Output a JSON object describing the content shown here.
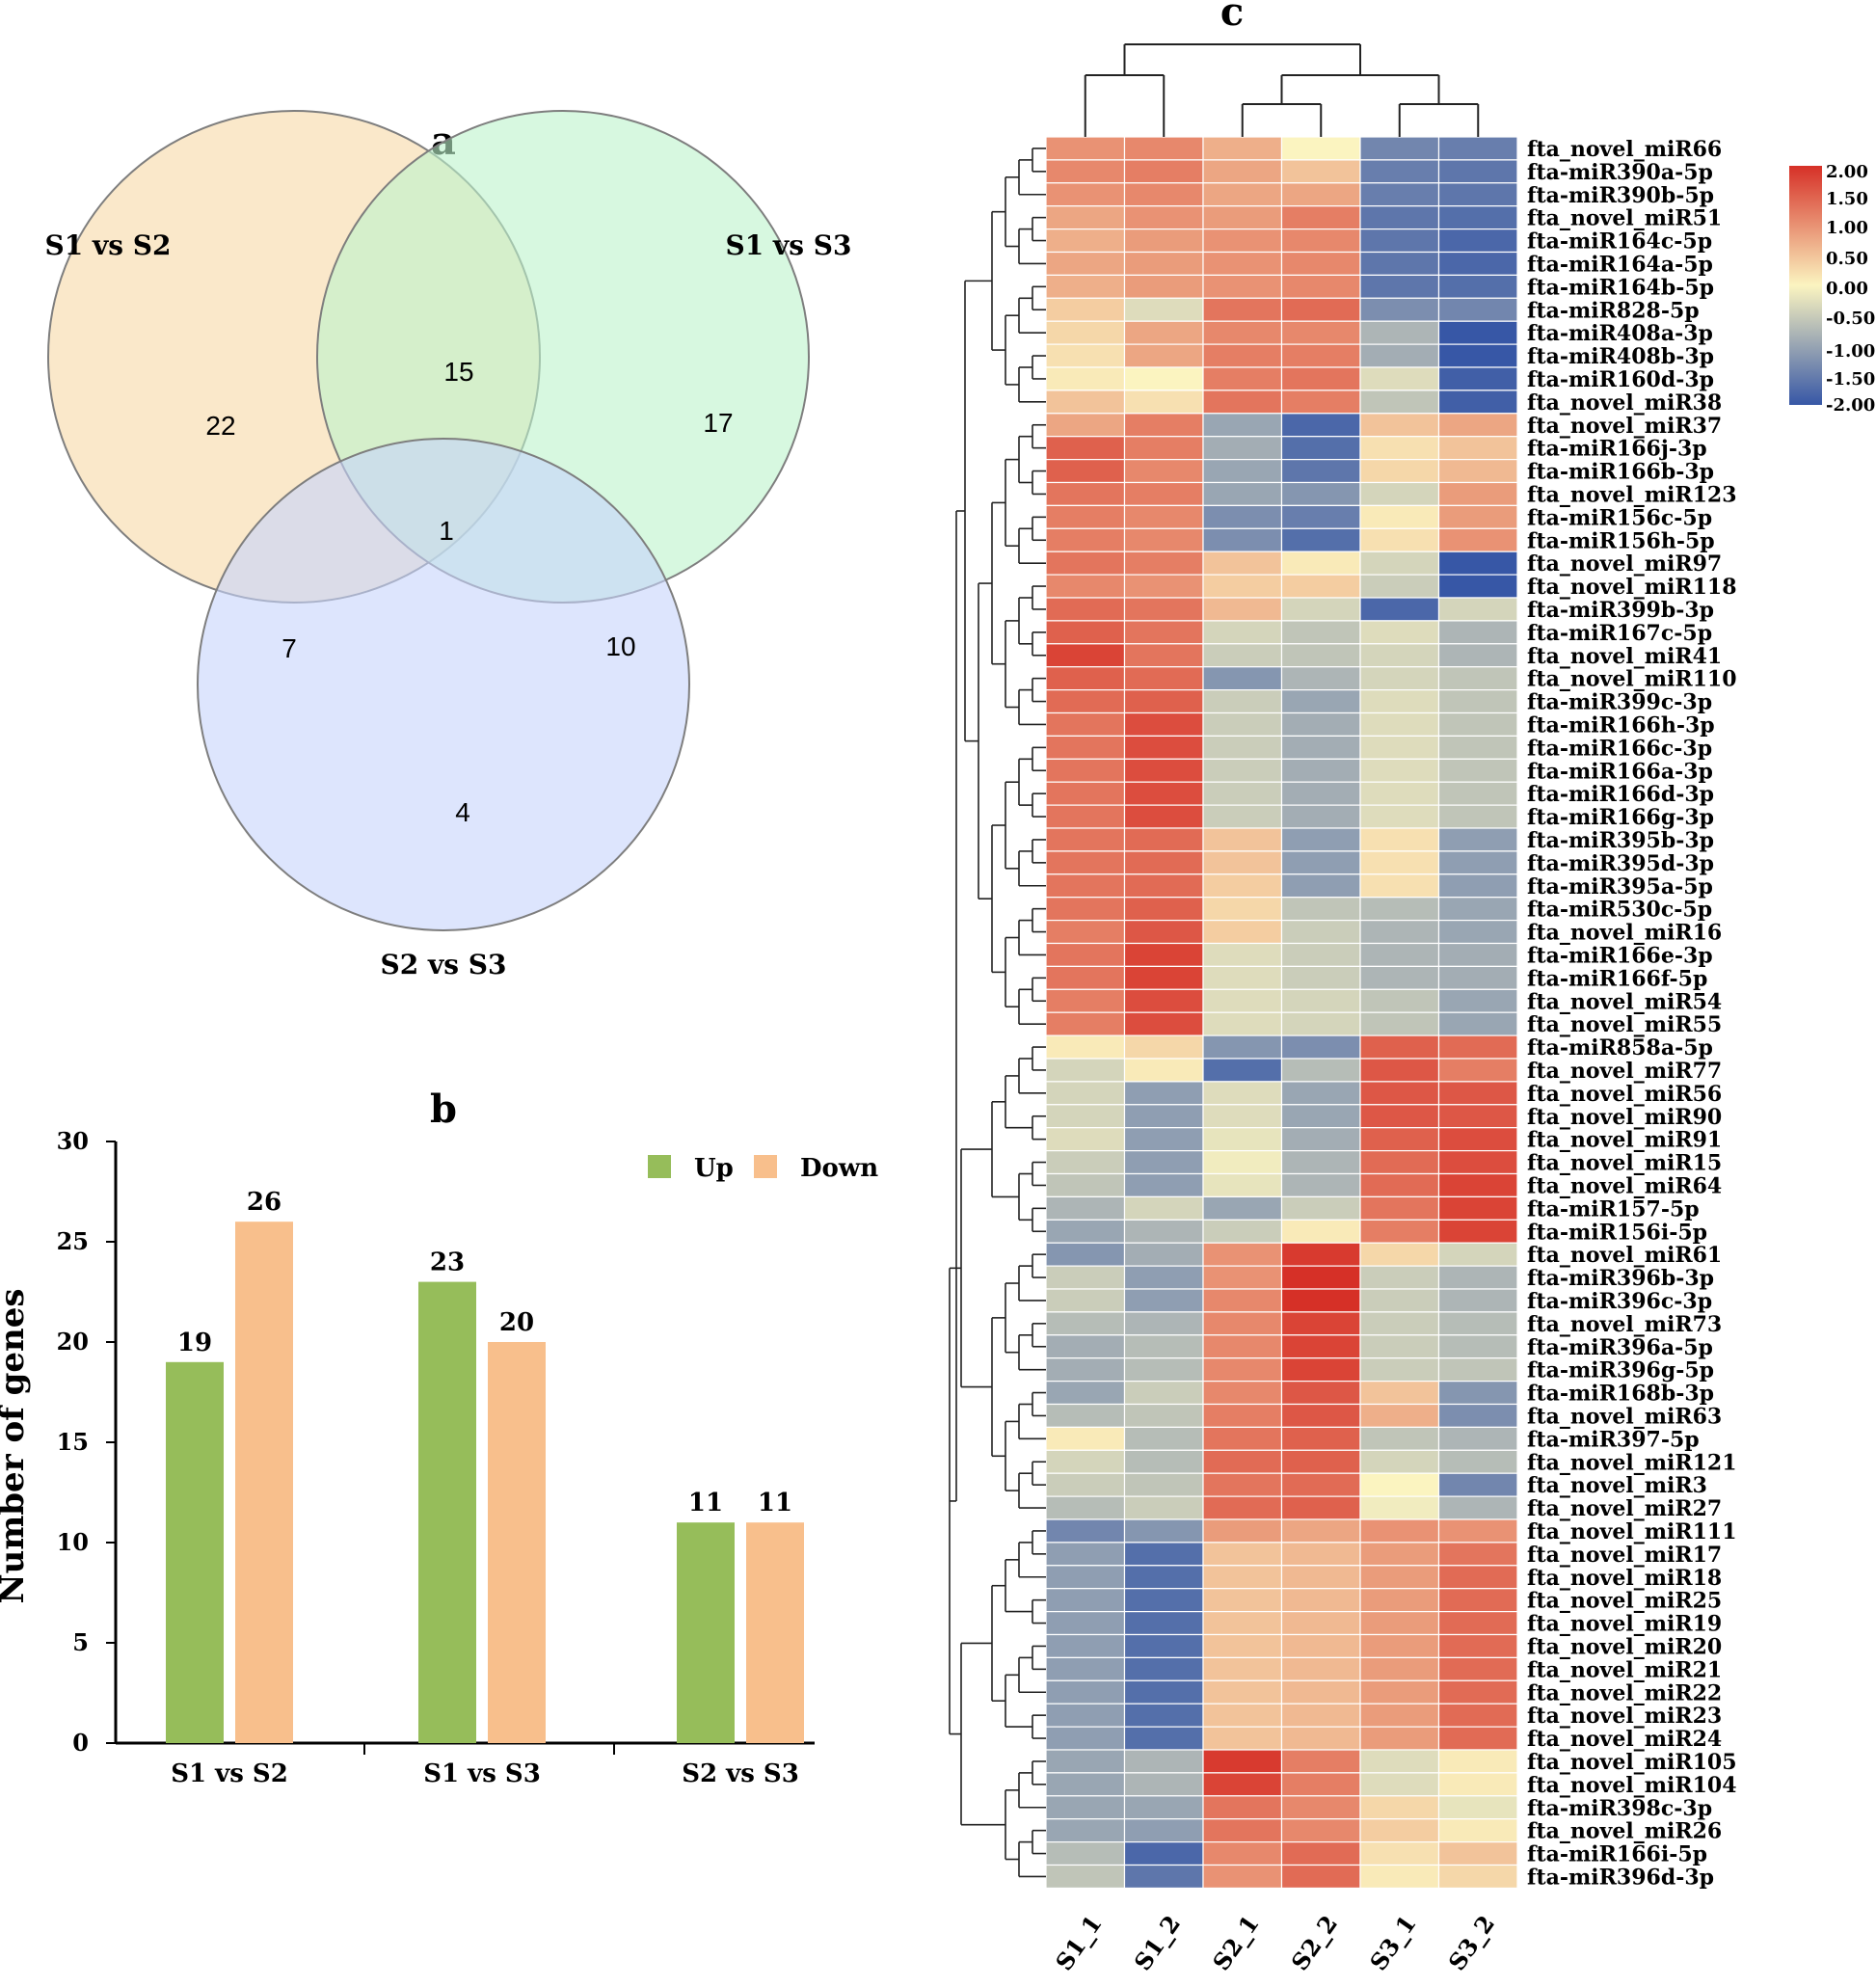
{
  "chart_data": [
    {
      "panel": "a",
      "type": "venn",
      "title": "a",
      "sets": [
        {
          "name": "S1 vs S2",
          "color": "#f6d9a6"
        },
        {
          "name": "S1 vs S3",
          "color": "#bdf3cb"
        },
        {
          "name": "S2 vs S3",
          "color": "#c6d3fb"
        }
      ],
      "regions": [
        {
          "sets": [
            "S1 vs S2"
          ],
          "count": "22"
        },
        {
          "sets": [
            "S1 vs S3"
          ],
          "count": "17"
        },
        {
          "sets": [
            "S2 vs S3"
          ],
          "count": "4"
        },
        {
          "sets": [
            "S1 vs S2",
            "S1 vs S3"
          ],
          "count": "15"
        },
        {
          "sets": [
            "S1 vs S2",
            "S2 vs S3"
          ],
          "count": "7"
        },
        {
          "sets": [
            "S1 vs S3",
            "S2 vs S3"
          ],
          "count": "10"
        },
        {
          "sets": [
            "S1 vs S2",
            "S1 vs S3",
            "S2 vs S3"
          ],
          "count": "1"
        }
      ]
    },
    {
      "panel": "b",
      "type": "bar",
      "title": "b",
      "categories": [
        "S1 vs S2",
        "S1 vs S3",
        "S2 vs S3"
      ],
      "series": [
        {
          "name": "Up",
          "color": "#96bd5a",
          "values": [
            19,
            23,
            11
          ]
        },
        {
          "name": "Down",
          "color": "#f8bf8c",
          "values": [
            26,
            20,
            11
          ]
        }
      ],
      "ylabel": "Number of genes",
      "xlabel": "",
      "ylim": [
        0,
        30
      ],
      "yticks": [
        0,
        5,
        10,
        15,
        20,
        25,
        30
      ],
      "legend_position": "top-right"
    },
    {
      "panel": "c",
      "type": "heatmap",
      "title": "c",
      "columns": [
        "S1_1",
        "S1_2",
        "S2_1",
        "S2_2",
        "S3_1",
        "S3_2"
      ],
      "color_scale": {
        "min": -2,
        "max": 2,
        "ticks": [
          "2.00",
          "1.50",
          "1.00",
          "0.50",
          "0.00",
          "-0.50",
          "-1.00",
          "-1.50",
          "-2.00"
        ],
        "colors": [
          "#3757a6",
          "#fbf4c0",
          "#d63027"
        ]
      },
      "rows": [
        {
          "name": "fta_novel_miR66",
          "values": [
            1.0,
            1.1,
            0.7,
            0.0,
            -1.4,
            -1.5
          ]
        },
        {
          "name": "fta-miR390a-5p",
          "values": [
            1.1,
            1.2,
            0.8,
            0.5,
            -1.5,
            -1.6
          ]
        },
        {
          "name": "fta-miR390b-5p",
          "values": [
            1.0,
            1.1,
            0.8,
            0.8,
            -1.5,
            -1.6
          ]
        },
        {
          "name": "fta_novel_miR51",
          "values": [
            0.8,
            1.0,
            0.9,
            1.2,
            -1.6,
            -1.7
          ]
        },
        {
          "name": "fta-miR164c-5p",
          "values": [
            0.7,
            0.9,
            1.0,
            1.1,
            -1.6,
            -1.8
          ]
        },
        {
          "name": "fta-miR164a-5p",
          "values": [
            0.8,
            0.9,
            1.0,
            1.1,
            -1.6,
            -1.8
          ]
        },
        {
          "name": "fta-miR164b-5p",
          "values": [
            0.7,
            0.9,
            1.0,
            1.1,
            -1.6,
            -1.7
          ]
        },
        {
          "name": "fta-miR828-5p",
          "values": [
            0.4,
            -0.3,
            1.3,
            1.4,
            -1.3,
            -1.4
          ]
        },
        {
          "name": "fta-miR408a-3p",
          "values": [
            0.3,
            0.8,
            1.1,
            1.1,
            -0.8,
            -2.0
          ]
        },
        {
          "name": "fta-miR408b-3p",
          "values": [
            0.2,
            0.8,
            1.2,
            1.2,
            -0.9,
            -2.0
          ]
        },
        {
          "name": "fta-miR160d-3p",
          "values": [
            0.1,
            0.0,
            1.2,
            1.3,
            -0.3,
            -1.9
          ]
        },
        {
          "name": "fta_novel_miR38",
          "values": [
            0.5,
            0.2,
            1.3,
            1.2,
            -0.6,
            -1.9
          ]
        },
        {
          "name": "fta_novel_miR37",
          "values": [
            0.8,
            1.2,
            -1.0,
            -1.8,
            0.5,
            0.8
          ]
        },
        {
          "name": "fta-miR166j-3p",
          "values": [
            1.5,
            1.2,
            -0.9,
            -1.7,
            0.2,
            0.5
          ]
        },
        {
          "name": "fta-miR166b-3p",
          "values": [
            1.5,
            1.1,
            -1.0,
            -1.6,
            0.3,
            0.6
          ]
        },
        {
          "name": "fta_novel_miR123",
          "values": [
            1.3,
            1.2,
            -1.0,
            -1.2,
            -0.4,
            0.9
          ]
        },
        {
          "name": "fta-miR156c-5p",
          "values": [
            1.2,
            1.1,
            -1.3,
            -1.5,
            0.1,
            0.9
          ]
        },
        {
          "name": "fta-miR156h-5p",
          "values": [
            1.2,
            1.1,
            -1.3,
            -1.7,
            0.2,
            1.0
          ]
        },
        {
          "name": "fta_novel_miR97",
          "values": [
            1.3,
            1.2,
            0.5,
            0.1,
            -0.4,
            -2.0
          ]
        },
        {
          "name": "fta_novel_miR118",
          "values": [
            1.1,
            1.0,
            0.4,
            0.4,
            -0.5,
            -2.0
          ]
        },
        {
          "name": "fta-miR399b-3p",
          "values": [
            1.4,
            1.3,
            0.6,
            -0.4,
            -1.8,
            -0.4
          ]
        },
        {
          "name": "fta-miR167c-5p",
          "values": [
            1.5,
            1.3,
            -0.4,
            -0.6,
            -0.3,
            -0.8
          ]
        },
        {
          "name": "fta_novel_miR41",
          "values": [
            1.8,
            1.3,
            -0.5,
            -0.6,
            -0.4,
            -0.8
          ]
        },
        {
          "name": "fta_novel_miR110",
          "values": [
            1.5,
            1.4,
            -1.2,
            -0.8,
            -0.4,
            -0.6
          ]
        },
        {
          "name": "fta-miR399c-3p",
          "values": [
            1.4,
            1.5,
            -0.5,
            -1.0,
            -0.3,
            -0.6
          ]
        },
        {
          "name": "fta-miR166h-3p",
          "values": [
            1.3,
            1.7,
            -0.5,
            -0.9,
            -0.3,
            -0.6
          ]
        },
        {
          "name": "fta-miR166c-3p",
          "values": [
            1.3,
            1.7,
            -0.5,
            -0.9,
            -0.3,
            -0.6
          ]
        },
        {
          "name": "fta-miR166a-3p",
          "values": [
            1.3,
            1.7,
            -0.5,
            -0.9,
            -0.3,
            -0.6
          ]
        },
        {
          "name": "fta-miR166d-3p",
          "values": [
            1.3,
            1.7,
            -0.5,
            -0.9,
            -0.3,
            -0.6
          ]
        },
        {
          "name": "fta-miR166g-3p",
          "values": [
            1.3,
            1.7,
            -0.5,
            -0.9,
            -0.3,
            -0.6
          ]
        },
        {
          "name": "fta-miR395b-3p",
          "values": [
            1.3,
            1.4,
            0.5,
            -1.1,
            0.2,
            -1.1
          ]
        },
        {
          "name": "fta-miR395d-3p",
          "values": [
            1.3,
            1.4,
            0.5,
            -1.1,
            0.2,
            -1.1
          ]
        },
        {
          "name": "fta-miR395a-5p",
          "values": [
            1.3,
            1.4,
            0.4,
            -1.1,
            0.2,
            -1.1
          ]
        },
        {
          "name": "fta-miR530c-5p",
          "values": [
            1.3,
            1.5,
            0.3,
            -0.6,
            -0.7,
            -1.0
          ]
        },
        {
          "name": "fta_novel_miR16",
          "values": [
            1.2,
            1.6,
            0.4,
            -0.5,
            -0.8,
            -1.0
          ]
        },
        {
          "name": "fta-miR166e-3p",
          "values": [
            1.3,
            1.8,
            -0.3,
            -0.5,
            -0.8,
            -0.9
          ]
        },
        {
          "name": "fta-miR166f-5p",
          "values": [
            1.3,
            1.8,
            -0.3,
            -0.5,
            -0.8,
            -0.9
          ]
        },
        {
          "name": "fta_novel_miR54",
          "values": [
            1.2,
            1.7,
            -0.3,
            -0.4,
            -0.6,
            -1.0
          ]
        },
        {
          "name": "fta_novel_miR55",
          "values": [
            1.2,
            1.7,
            -0.3,
            -0.4,
            -0.6,
            -1.0
          ]
        },
        {
          "name": "fta-miR858a-5p",
          "values": [
            0.1,
            0.3,
            -1.2,
            -1.3,
            1.5,
            1.4
          ]
        },
        {
          "name": "fta_novel_miR77",
          "values": [
            -0.4,
            0.1,
            -1.7,
            -0.7,
            1.6,
            1.2
          ]
        },
        {
          "name": "fta_novel_miR56",
          "values": [
            -0.4,
            -1.1,
            -0.3,
            -1.0,
            1.6,
            1.6
          ]
        },
        {
          "name": "fta_novel_miR90",
          "values": [
            -0.4,
            -1.1,
            -0.3,
            -1.0,
            1.6,
            1.6
          ]
        },
        {
          "name": "fta_novel_miR91",
          "values": [
            -0.3,
            -1.1,
            -0.2,
            -0.9,
            1.5,
            1.7
          ]
        },
        {
          "name": "fta_novel_miR15",
          "values": [
            -0.5,
            -1.1,
            -0.1,
            -0.8,
            1.4,
            1.7
          ]
        },
        {
          "name": "fta_novel_miR64",
          "values": [
            -0.6,
            -1.1,
            -0.2,
            -0.8,
            1.4,
            1.8
          ]
        },
        {
          "name": "fta-miR157-5p",
          "values": [
            -0.8,
            -0.4,
            -1.0,
            -0.5,
            1.3,
            1.8
          ]
        },
        {
          "name": "fta-miR156i-5p",
          "values": [
            -1.0,
            -0.8,
            -0.5,
            0.1,
            1.2,
            1.8
          ]
        },
        {
          "name": "fta_novel_miR61",
          "values": [
            -1.2,
            -0.9,
            1.0,
            1.9,
            0.3,
            -0.4
          ]
        },
        {
          "name": "fta-miR396b-3p",
          "values": [
            -0.5,
            -1.1,
            1.0,
            2.0,
            -0.5,
            -0.8
          ]
        },
        {
          "name": "fta-miR396c-3p",
          "values": [
            -0.5,
            -1.1,
            1.1,
            2.0,
            -0.5,
            -0.8
          ]
        },
        {
          "name": "fta_novel_miR73",
          "values": [
            -0.7,
            -0.8,
            1.1,
            1.8,
            -0.5,
            -0.7
          ]
        },
        {
          "name": "fta-miR396a-5p",
          "values": [
            -0.9,
            -0.7,
            1.1,
            1.8,
            -0.5,
            -0.7
          ]
        },
        {
          "name": "fta-miR396g-5p",
          "values": [
            -0.9,
            -0.7,
            1.1,
            1.8,
            -0.5,
            -0.6
          ]
        },
        {
          "name": "fta-miR168b-3p",
          "values": [
            -1.0,
            -0.5,
            1.1,
            1.6,
            0.5,
            -1.2
          ]
        },
        {
          "name": "fta_novel_miR63",
          "values": [
            -0.7,
            -0.6,
            1.2,
            1.6,
            0.7,
            -1.3
          ]
        },
        {
          "name": "fta-miR397-5p",
          "values": [
            0.1,
            -0.7,
            1.3,
            1.5,
            -0.6,
            -0.8
          ]
        },
        {
          "name": "fta_novel_miR121",
          "values": [
            -0.4,
            -0.7,
            1.4,
            1.5,
            -0.4,
            -0.7
          ]
        },
        {
          "name": "fta_novel_miR3",
          "values": [
            -0.5,
            -0.6,
            1.3,
            1.4,
            0.0,
            -1.4
          ]
        },
        {
          "name": "fta_novel_miR27",
          "values": [
            -0.7,
            -0.5,
            1.4,
            1.5,
            -0.1,
            -0.8
          ]
        },
        {
          "name": "fta_novel_miR111",
          "values": [
            -1.4,
            -1.2,
            0.9,
            0.8,
            1.0,
            1.0
          ]
        },
        {
          "name": "fta_novel_miR17",
          "values": [
            -1.1,
            -1.7,
            0.5,
            0.6,
            0.9,
            1.3
          ]
        },
        {
          "name": "fta_novel_miR18",
          "values": [
            -1.1,
            -1.7,
            0.5,
            0.6,
            0.9,
            1.4
          ]
        },
        {
          "name": "fta_novel_miR25",
          "values": [
            -1.1,
            -1.7,
            0.5,
            0.6,
            0.9,
            1.4
          ]
        },
        {
          "name": "fta_novel_miR19",
          "values": [
            -1.1,
            -1.7,
            0.5,
            0.6,
            0.9,
            1.4
          ]
        },
        {
          "name": "fta_novel_miR20",
          "values": [
            -1.1,
            -1.7,
            0.5,
            0.6,
            0.9,
            1.4
          ]
        },
        {
          "name": "fta_novel_miR21",
          "values": [
            -1.1,
            -1.7,
            0.5,
            0.6,
            0.9,
            1.4
          ]
        },
        {
          "name": "fta_novel_miR22",
          "values": [
            -1.1,
            -1.7,
            0.5,
            0.6,
            0.9,
            1.4
          ]
        },
        {
          "name": "fta_novel_miR23",
          "values": [
            -1.1,
            -1.7,
            0.5,
            0.6,
            0.9,
            1.4
          ]
        },
        {
          "name": "fta_novel_miR24",
          "values": [
            -1.1,
            -1.7,
            0.5,
            0.6,
            0.9,
            1.4
          ]
        },
        {
          "name": "fta_novel_miR105",
          "values": [
            -1.0,
            -0.8,
            1.9,
            1.2,
            -0.3,
            0.1
          ]
        },
        {
          "name": "fta_novel_miR104",
          "values": [
            -1.0,
            -0.8,
            1.8,
            1.2,
            -0.3,
            0.1
          ]
        },
        {
          "name": "fta-miR398c-3p",
          "values": [
            -1.0,
            -1.0,
            1.3,
            1.1,
            0.3,
            -0.2
          ]
        },
        {
          "name": "fta_novel_miR26",
          "values": [
            -1.0,
            -1.1,
            1.3,
            1.1,
            0.4,
            0.1
          ]
        },
        {
          "name": "fta-miR166i-5p",
          "values": [
            -0.7,
            -1.8,
            1.1,
            1.4,
            0.2,
            0.5
          ]
        },
        {
          "name": "fta-miR396d-3p",
          "values": [
            -0.6,
            -1.6,
            1.0,
            1.4,
            0.1,
            0.3
          ]
        }
      ],
      "row_dendrogram": "hierarchical clustering (left)",
      "column_dendrogram": "hierarchical clustering (top)"
    }
  ]
}
